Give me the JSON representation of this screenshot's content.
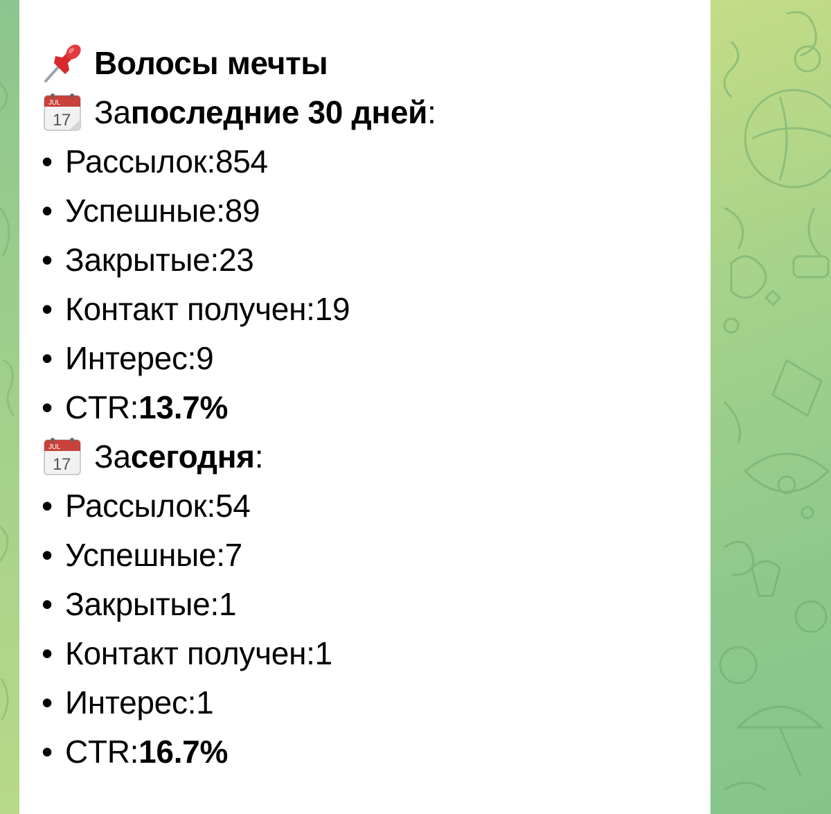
{
  "message": {
    "title": "Волосы мечты",
    "title_icon": "pushpin-icon",
    "sections": [
      {
        "icon": "calendar-icon",
        "calendar_month": "JUL",
        "calendar_day": "17",
        "prefix": "За ",
        "period": "последние 30 дней",
        "suffix": ":",
        "bullet": "•",
        "stats": [
          {
            "label": "Рассылок: ",
            "value": "854"
          },
          {
            "label": "Успешные: ",
            "value": "89"
          },
          {
            "label": "Закрытые: ",
            "value": "23"
          },
          {
            "label": "Контакт получен: ",
            "value": "19"
          },
          {
            "label": "Интерес: ",
            "value": "9"
          }
        ],
        "ctr_label": "CTR: ",
        "ctr_value": "13.7%"
      },
      {
        "icon": "calendar-icon",
        "calendar_month": "JUL",
        "calendar_day": "17",
        "prefix": "За ",
        "period": "сегодня",
        "suffix": ":",
        "bullet": "•",
        "stats": [
          {
            "label": "Рассылок: ",
            "value": "54"
          },
          {
            "label": "Успешные: ",
            "value": "7"
          },
          {
            "label": "Закрытые: ",
            "value": "1"
          },
          {
            "label": "Контакт получен: ",
            "value": "1"
          },
          {
            "label": "Интерес: ",
            "value": "1"
          }
        ],
        "ctr_label": "CTR: ",
        "ctr_value": "16.7%"
      }
    ]
  },
  "colors": {
    "bubble": "#ffffff",
    "text": "#000000",
    "wallpaper": "#9fd08a",
    "pin": "#d8282e",
    "calendar_header": "#c8413b"
  }
}
